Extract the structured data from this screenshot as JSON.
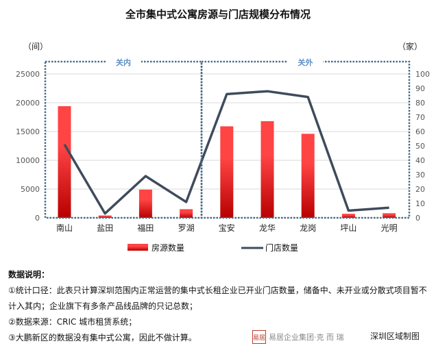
{
  "title": "全市集中式公寓房源与门店规模分布情况",
  "chart_data": {
    "type": "bar+line",
    "categories": [
      "南山",
      "盐田",
      "福田",
      "罗湖",
      "宝安",
      "龙华",
      "龙岗",
      "坪山",
      "光明"
    ],
    "series": [
      {
        "name": "房源数量",
        "type": "bar",
        "axis": "left",
        "values": [
          19400,
          400,
          4900,
          1500,
          15900,
          16800,
          14600,
          700,
          800
        ]
      },
      {
        "name": "门店数量",
        "type": "line",
        "axis": "right",
        "values": [
          51,
          3,
          29,
          11,
          86,
          88,
          84,
          5,
          7
        ]
      }
    ],
    "left_axis": {
      "unit": "（间）",
      "ylim": [
        0,
        25000
      ],
      "ticks": [
        "0",
        "5000",
        "10000",
        "15000",
        "20000",
        "25000"
      ]
    },
    "right_axis": {
      "unit": "（家）",
      "ylim": [
        0,
        100
      ],
      "ticks": [
        "0",
        "10",
        "20",
        "30",
        "40",
        "50",
        "60",
        "70",
        "80",
        "90",
        "100"
      ]
    },
    "regions": [
      {
        "label": "关内",
        "categories": [
          "南山",
          "盐田",
          "福田",
          "罗湖"
        ]
      },
      {
        "label": "关外",
        "categories": [
          "宝安",
          "龙华",
          "龙岗",
          "坪山",
          "光明"
        ]
      }
    ],
    "grid": true,
    "legend": "bottom",
    "colors": {
      "bar_top": "#ff4444",
      "bar_bottom": "#b80000",
      "line": "#3f4b5c",
      "region_border": "#4a6a85",
      "region_label": "#5b8ec4"
    }
  },
  "notes": {
    "heading": "数据说明：",
    "items": [
      "①统计口径：此表只计算深圳范围内正常运营的集中式长租企业已开业门店数量，储备中、未开业或分散式项目暂不计入其内；企业旗下有多条产品线品牌的只记总数；",
      "②数据来源：CRIC 城市租赁系统；",
      "③大鹏新区的数据没有集中式公寓，因此不做计算。"
    ]
  },
  "logo": {
    "seal": "易居",
    "text": "易居企业集团·克 而 瑞"
  },
  "credit": "深圳区域制图"
}
